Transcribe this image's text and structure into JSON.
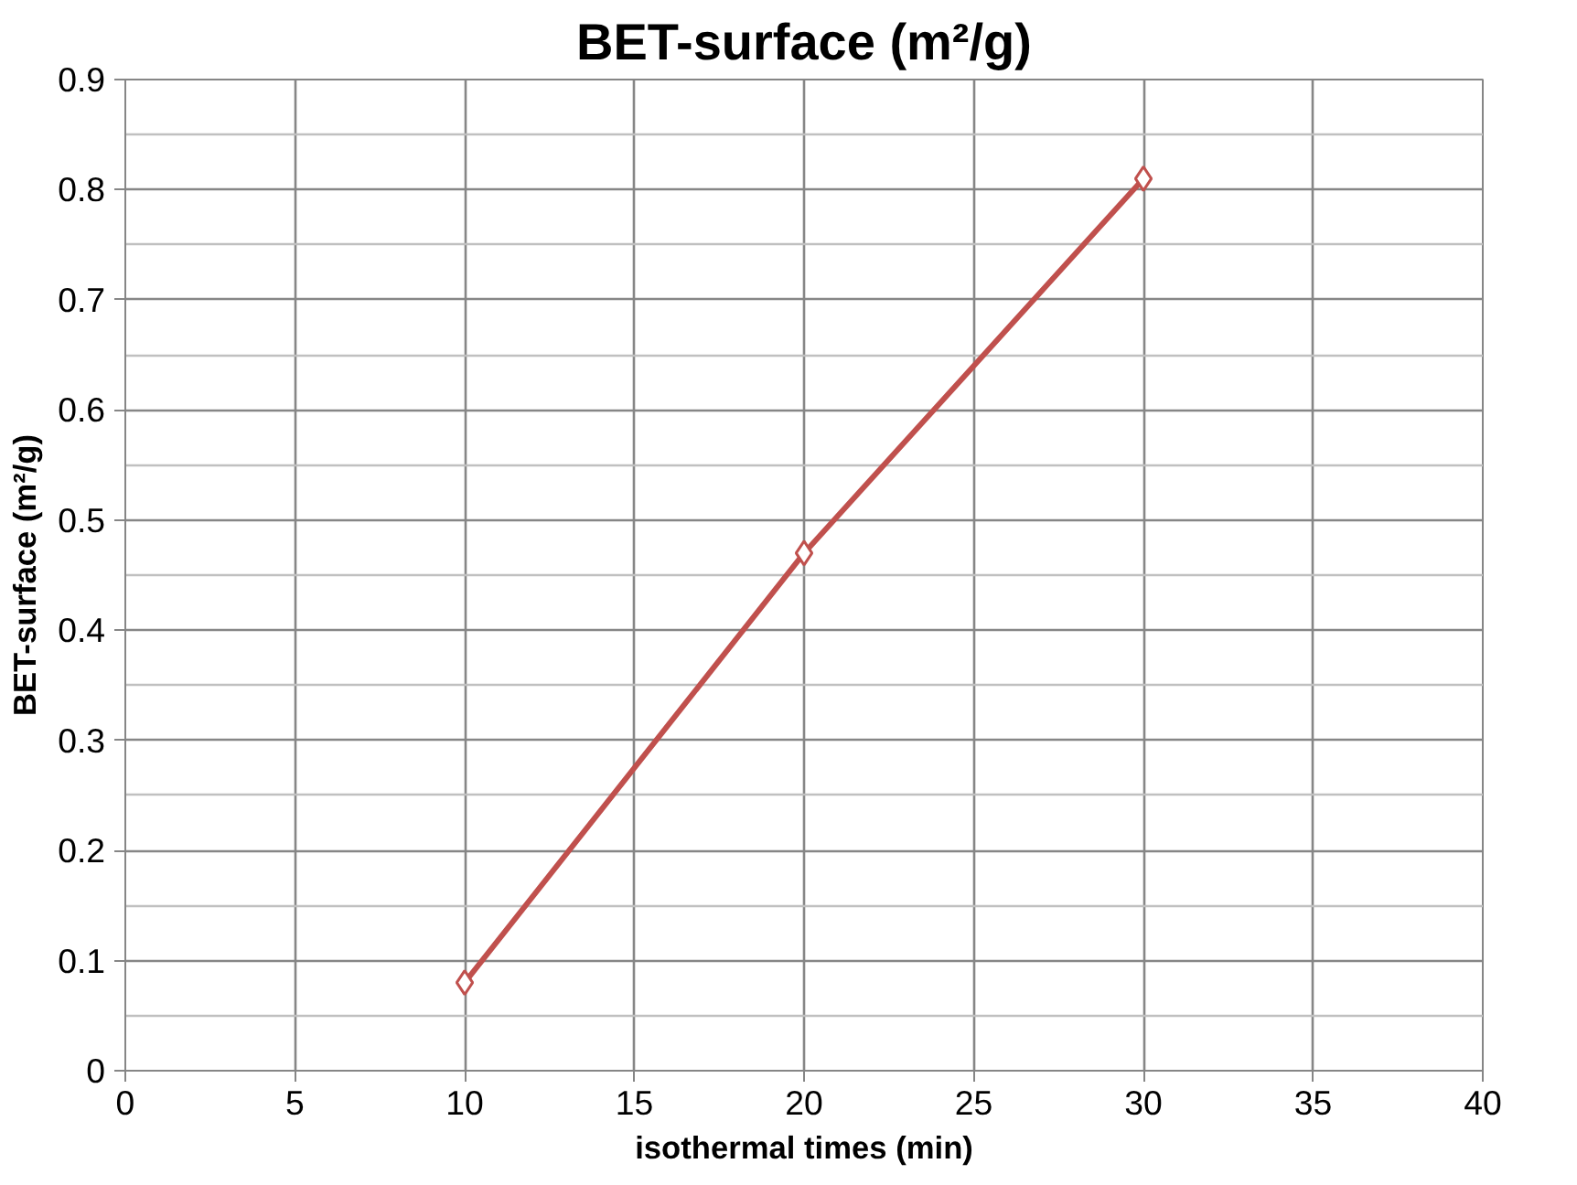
{
  "chart_data": {
    "type": "line",
    "title": "BET-surface (m²/g)",
    "xlabel": "isothermal times (min)",
    "ylabel": "BET-surface (m²/g)",
    "x": [
      10,
      20,
      30
    ],
    "series": [
      {
        "color": "#c0504d",
        "values": [
          0.08,
          0.47,
          0.81
        ]
      }
    ],
    "xlim": [
      0,
      40
    ],
    "xticks": [
      0,
      5,
      10,
      15,
      20,
      25,
      30,
      35,
      40
    ],
    "ylim": [
      0,
      0.9
    ],
    "yticks": [
      0,
      0.1,
      0.2,
      0.3,
      0.4,
      0.5,
      0.6,
      0.7,
      0.8,
      0.9
    ],
    "grid": true,
    "marker": "diamond",
    "line_style": "solid"
  }
}
